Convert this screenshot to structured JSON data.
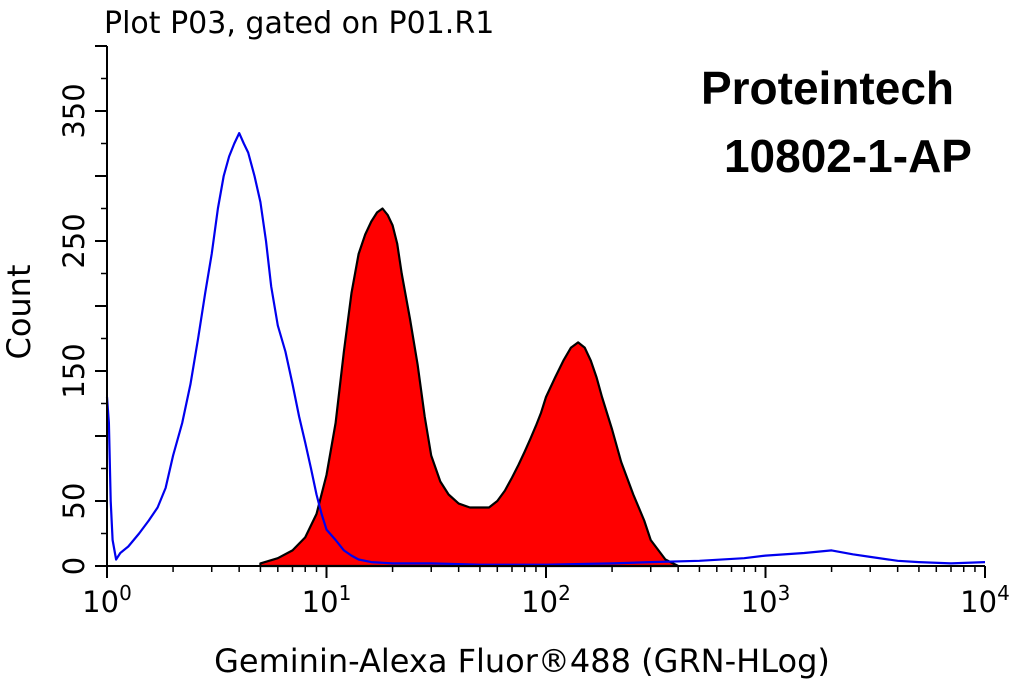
{
  "chart_data": {
    "type": "area",
    "title": "Plot P03, gated on P01.R1",
    "xlabel": "Geminin-Alexa Fluor®488 (GRN-HLog)",
    "ylabel": "Count",
    "xscale": "log",
    "xlim": [
      1,
      10000
    ],
    "ylim": [
      0,
      400
    ],
    "x_tick_labels": [
      {
        "value": 1,
        "base": "10",
        "exp": "0"
      },
      {
        "value": 10,
        "base": "10",
        "exp": "1"
      },
      {
        "value": 100,
        "base": "10",
        "exp": "2"
      },
      {
        "value": 1000,
        "base": "10",
        "exp": "3"
      },
      {
        "value": 10000,
        "base": "10",
        "exp": "4"
      }
    ],
    "y_tick_labels": [
      "0",
      "50",
      "150",
      "250",
      "350"
    ],
    "y_tick_values": [
      0,
      50,
      150,
      250,
      350
    ],
    "grid": false,
    "annotations": [
      "Proteintech",
      "10802-1-AP"
    ],
    "series": [
      {
        "style": "outline",
        "color": "#0000ee",
        "x": [
          1.0,
          1.02,
          1.04,
          1.06,
          1.1,
          1.15,
          1.25,
          1.4,
          1.55,
          1.7,
          1.85,
          2.0,
          2.2,
          2.4,
          2.6,
          2.8,
          3.0,
          3.2,
          3.4,
          3.6,
          3.8,
          4.0,
          4.2,
          4.4,
          4.7,
          5.0,
          5.3,
          5.6,
          6.0,
          6.5,
          7.0,
          7.5,
          8.0,
          8.5,
          9.0,
          9.5,
          10.0,
          11.0,
          12.0,
          13.0,
          14.0,
          16.0,
          20.0,
          30.0,
          50.0,
          100.0,
          200.0,
          300.0,
          500.0,
          800.0,
          1000.0,
          1500.0,
          2000.0,
          2500.0,
          3000.0,
          4000.0,
          5000.0,
          7000.0,
          10000.0
        ],
        "y": [
          130,
          110,
          50,
          20,
          5,
          10,
          15,
          25,
          35,
          45,
          60,
          85,
          110,
          140,
          175,
          210,
          240,
          275,
          300,
          315,
          325,
          333,
          325,
          318,
          300,
          280,
          250,
          215,
          185,
          165,
          140,
          115,
          95,
          75,
          55,
          40,
          28,
          20,
          12,
          8,
          5,
          3,
          2,
          2,
          1,
          1,
          2,
          3,
          4,
          6,
          8,
          10,
          12,
          9,
          7,
          4,
          3,
          2,
          3
        ]
      },
      {
        "style": "filled",
        "color": "#ff0000",
        "x": [
          5.0,
          6.0,
          7.0,
          8.0,
          9.0,
          10.0,
          11.0,
          12.0,
          13.0,
          14.0,
          15.0,
          16.0,
          17.0,
          18.0,
          19.0,
          20.0,
          21.0,
          22.0,
          24.0,
          26.0,
          28.0,
          30.0,
          33.0,
          36.0,
          40.0,
          45.0,
          50.0,
          55.0,
          60.0,
          65.0,
          70.0,
          75.0,
          80.0,
          85.0,
          90.0,
          95.0,
          100.0,
          110.0,
          120.0,
          130.0,
          140.0,
          150.0,
          160.0,
          170.0,
          180.0,
          200.0,
          220.0,
          250.0,
          280.0,
          300.0,
          350.0,
          400.0
        ],
        "y": [
          2,
          6,
          12,
          22,
          40,
          70,
          110,
          165,
          210,
          240,
          255,
          265,
          272,
          275,
          270,
          262,
          248,
          225,
          190,
          155,
          115,
          85,
          65,
          55,
          48,
          45,
          45,
          45,
          50,
          58,
          68,
          78,
          88,
          98,
          108,
          118,
          130,
          145,
          158,
          168,
          172,
          168,
          158,
          145,
          130,
          105,
          80,
          55,
          35,
          20,
          5,
          0
        ]
      }
    ]
  }
}
